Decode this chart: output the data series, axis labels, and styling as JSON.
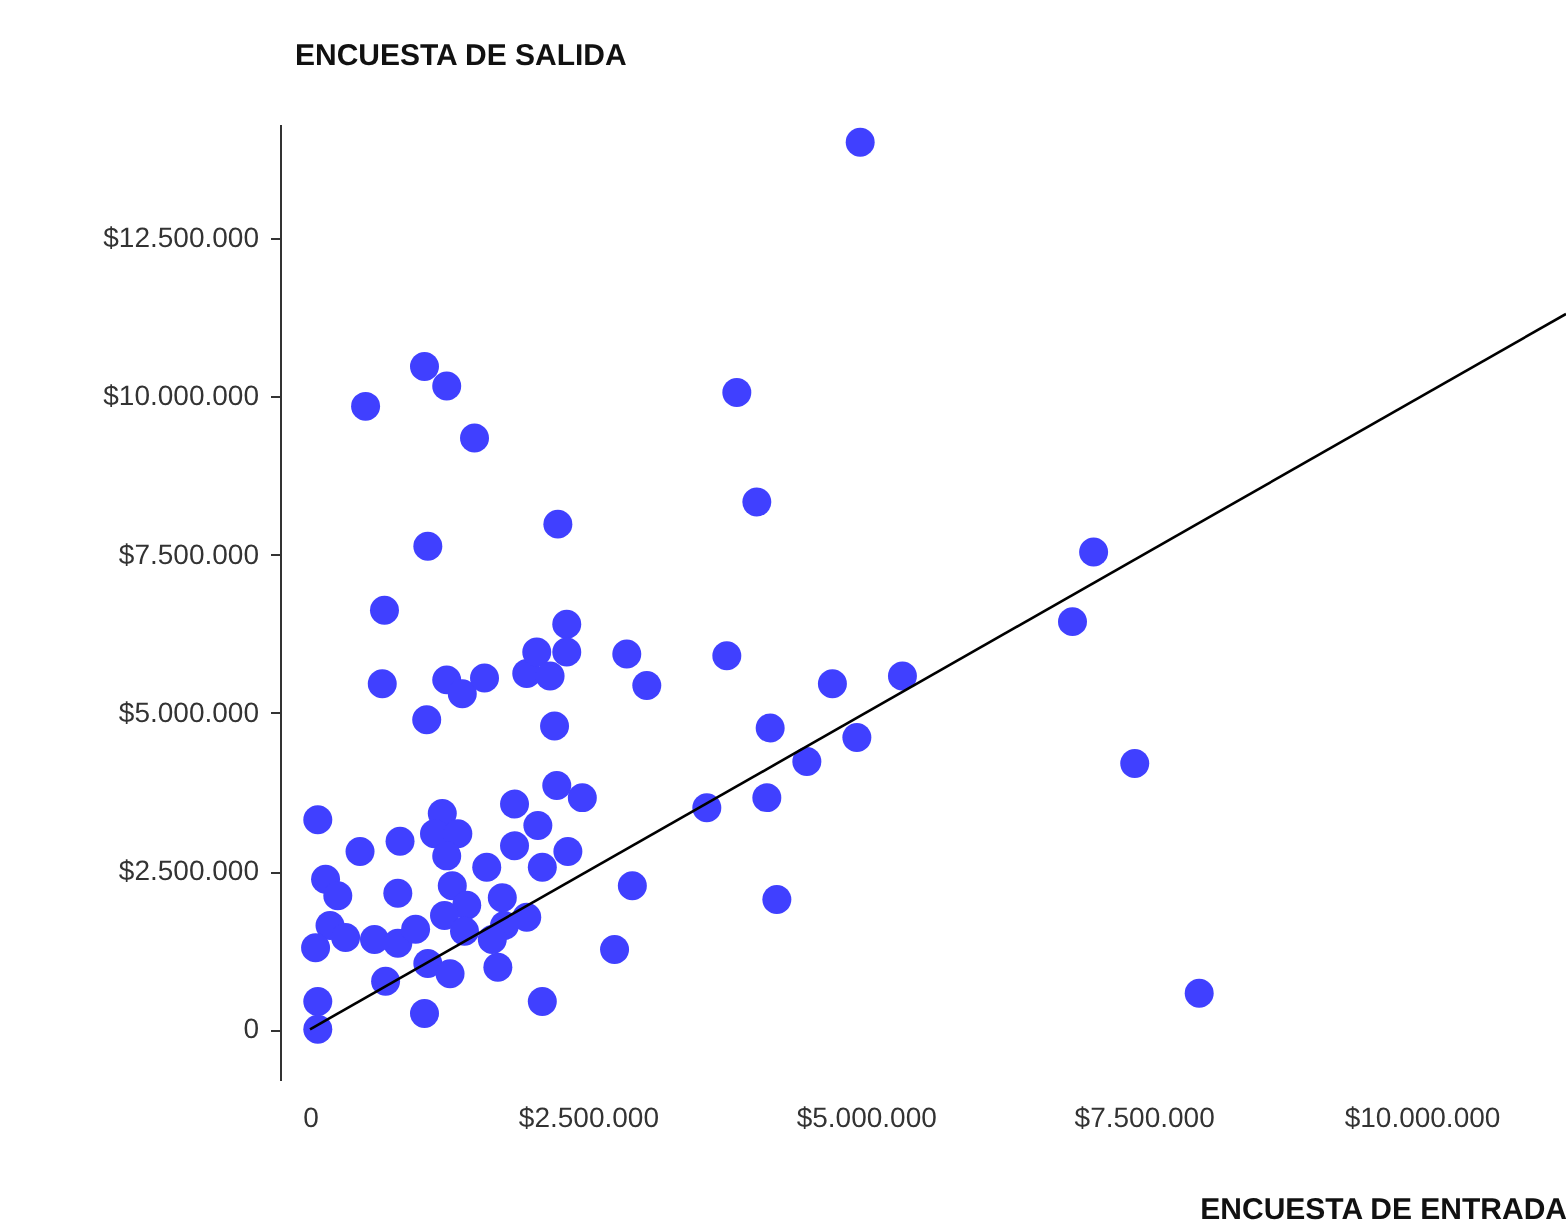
{
  "chart_data": {
    "type": "scatter",
    "xlabel": "ENCUESTA DE ENTRADA",
    "ylabel": "ENCUESTA DE SALIDA",
    "marker": "circle",
    "grid": false,
    "xlim": [
      -270000,
      11300000
    ],
    "ylim": [
      -800000,
      14300000
    ],
    "xticks": [
      0,
      {
        "value": 2500000,
        "label": "$2.500.000"
      },
      {
        "value": 5000000,
        "label": "$5.000.000"
      },
      {
        "value": 7500000,
        "label": "$7.500.000"
      },
      {
        "value": 10000000,
        "label": "$10.000.000"
      }
    ],
    "yticks": [
      0,
      {
        "value": 2500000,
        "label": "$2.500.000"
      },
      {
        "value": 5000000,
        "label": "$5.000.000"
      },
      {
        "value": 7500000,
        "label": "$7.500.000"
      },
      {
        "value": 10000000,
        "label": "$10.000.000"
      },
      {
        "value": 12500000,
        "label": "$12.500.000"
      }
    ],
    "series": [
      {
        "color": "#4040ff",
        "x": [
          670000,
          650000,
          1050000,
          1230000,
          1370000,
          1570000,
          1950000,
          2040000,
          2310000,
          2310000,
          2160000,
          2200000,
          2850000,
          3030000,
          70000,
          450000,
          810000,
          1190000,
          1120000,
          1330000,
          1230000,
          1840000,
          2050000,
          1840000,
          2220000,
          2450000,
          2320000,
          2090000,
          1590000,
          140000,
          250000,
          790000,
          1280000,
          2900000,
          1730000,
          1410000,
          1210000,
          1950000,
          1750000,
          180000,
          320000,
          580000,
          790000,
          950000,
          1390000,
          1640000,
          50000,
          2740000,
          1060000,
          1260000,
          1690000,
          680000,
          70000,
          1030000,
          2090000,
          70000,
          500000,
          1030000,
          1230000,
          1480000,
          1060000,
          2230000,
          3840000,
          4020000,
          4950000,
          3570000,
          4110000,
          4470000,
          4140000,
          4700000,
          4920000,
          5330000,
          4200000,
          3750000,
          6860000,
          7050000,
          7420000,
          8000000
        ],
        "values": [
          6620000,
          5460000,
          4890000,
          5520000,
          5300000,
          5550000,
          5620000,
          5960000,
          6400000,
          5960000,
          5580000,
          4790000,
          5930000,
          5430000,
          3310000,
          2810000,
          2970000,
          3410000,
          3090000,
          3090000,
          2740000,
          3560000,
          3220000,
          2900000,
          3850000,
          3660000,
          2810000,
          2560000,
          2560000,
          2370000,
          2110000,
          2150000,
          2270000,
          2270000,
          2080000,
          1960000,
          1800000,
          1770000,
          1640000,
          1640000,
          1450000,
          1420000,
          1360000,
          1580000,
          1550000,
          1420000,
          1290000,
          1260000,
          1040000,
          880000,
          980000,
          760000,
          440000,
          250000,
          440000,
          0,
          9840000,
          10470000,
          10160000,
          9340000,
          7630000,
          7980000,
          10060000,
          8330000,
          14010000,
          3500000,
          3660000,
          4230000,
          4760000,
          5460000,
          4610000,
          5580000,
          2050000,
          5900000,
          6440000,
          7540000,
          4200000,
          570000
        ]
      },
      {
        "type": "line",
        "marker": "none",
        "color": "#000000",
        "x": [
          0,
          11300000
        ],
        "values": [
          0,
          11300000
        ]
      }
    ]
  }
}
